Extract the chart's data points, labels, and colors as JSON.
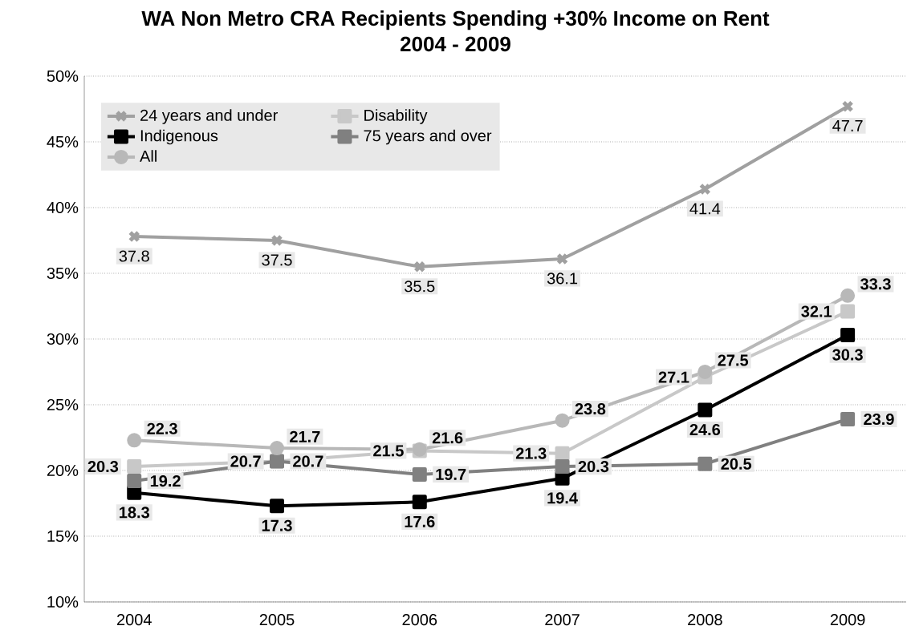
{
  "chart_data": {
    "type": "line",
    "title": "WA Non Metro CRA Recipients Spending +30% Income on Rent",
    "subtitle": "2004 - 2009",
    "categories": [
      "2004",
      "2005",
      "2006",
      "2007",
      "2008",
      "2009"
    ],
    "series": [
      {
        "name": "24 years and under",
        "color": "#a0a0a0",
        "marker": "cross",
        "values": [
          37.8,
          37.5,
          35.5,
          36.1,
          41.4,
          47.7
        ]
      },
      {
        "name": "Disability",
        "color": "#c8c8c8",
        "marker": "square",
        "values": [
          20.3,
          20.7,
          21.5,
          21.3,
          27.1,
          32.1
        ]
      },
      {
        "name": "Indigenous",
        "color": "#000000",
        "marker": "square",
        "values": [
          18.3,
          17.3,
          17.6,
          19.4,
          24.6,
          30.3
        ]
      },
      {
        "name": "75 years and over",
        "color": "#808080",
        "marker": "square",
        "values": [
          19.2,
          20.7,
          19.7,
          20.3,
          20.5,
          23.9
        ]
      },
      {
        "name": "All",
        "color": "#b8b8b8",
        "marker": "circle",
        "values": [
          22.3,
          21.7,
          21.6,
          23.8,
          27.5,
          33.3
        ]
      }
    ],
    "ylim": [
      10,
      50
    ],
    "yticks": [
      {
        "value": 10,
        "label": "10%"
      },
      {
        "value": 15,
        "label": "15%"
      },
      {
        "value": 20,
        "label": "20%"
      },
      {
        "value": 25,
        "label": "25%"
      },
      {
        "value": 30,
        "label": "30%"
      },
      {
        "value": 35,
        "label": "35%"
      },
      {
        "value": 40,
        "label": "40%"
      },
      {
        "value": 45,
        "label": "45%"
      },
      {
        "value": 50,
        "label": "50%"
      }
    ],
    "grid": "y",
    "legend": "top left",
    "data_labels": true,
    "line_style": "solid"
  }
}
